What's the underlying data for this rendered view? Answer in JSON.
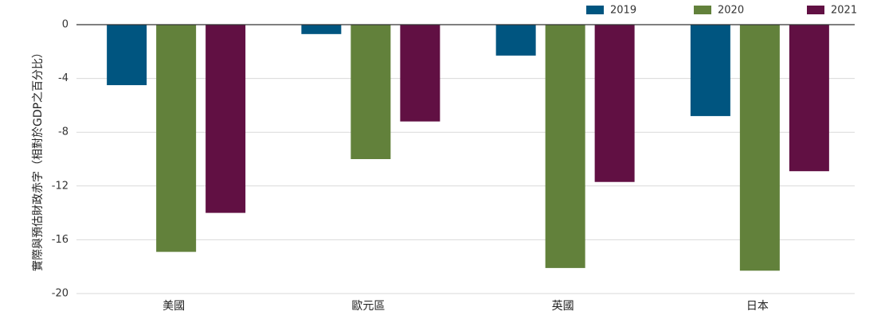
{
  "chart_data": {
    "type": "bar",
    "ylabel": "實際與預估財政赤字（相對於GDP之百分比）",
    "categories": [
      "美國",
      "歐元區",
      "英國",
      "日本"
    ],
    "series": [
      {
        "name": "2019",
        "values": [
          -4.5,
          -0.7,
          -2.3,
          -6.8
        ]
      },
      {
        "name": "2020",
        "values": [
          -16.9,
          -10.0,
          -18.1,
          -18.3
        ]
      },
      {
        "name": "2021",
        "values": [
          -14.0,
          -7.2,
          -11.7,
          -10.9
        ]
      }
    ],
    "ylim": [
      -20,
      0
    ],
    "yticks": [
      0,
      -4,
      -8,
      -12,
      -16,
      -20
    ],
    "grid": true,
    "legend": "top-right"
  },
  "colors": {
    "2019": "#005580",
    "2020": "#62813b",
    "2021": "#611043",
    "grid": "#d9d9d9",
    "axis": "#333333"
  }
}
